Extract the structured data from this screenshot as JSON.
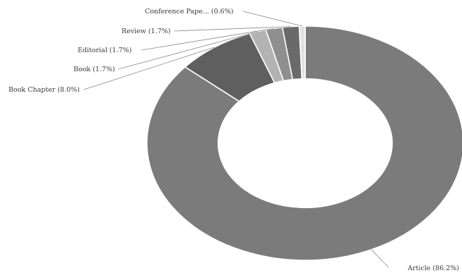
{
  "chart_data": {
    "type": "pie",
    "donut": true,
    "title": "",
    "series": [
      {
        "label": "Article (86.2%)",
        "value": 86.2,
        "color": "#7b7b7b"
      },
      {
        "label": "Book Chapter (8.0%)",
        "value": 8.0,
        "color": "#5f5f5f"
      },
      {
        "label": "Book (1.7%)",
        "value": 1.7,
        "color": "#b3b3b3"
      },
      {
        "label": "Editorial (1.7%)",
        "value": 1.7,
        "color": "#8f8f8f"
      },
      {
        "label": "Review (1.7%)",
        "value": 1.7,
        "color": "#6a6a6a"
      },
      {
        "label": "Conference Pape... (0.6%)",
        "value": 0.6,
        "color": "#e2e2e2"
      }
    ]
  }
}
